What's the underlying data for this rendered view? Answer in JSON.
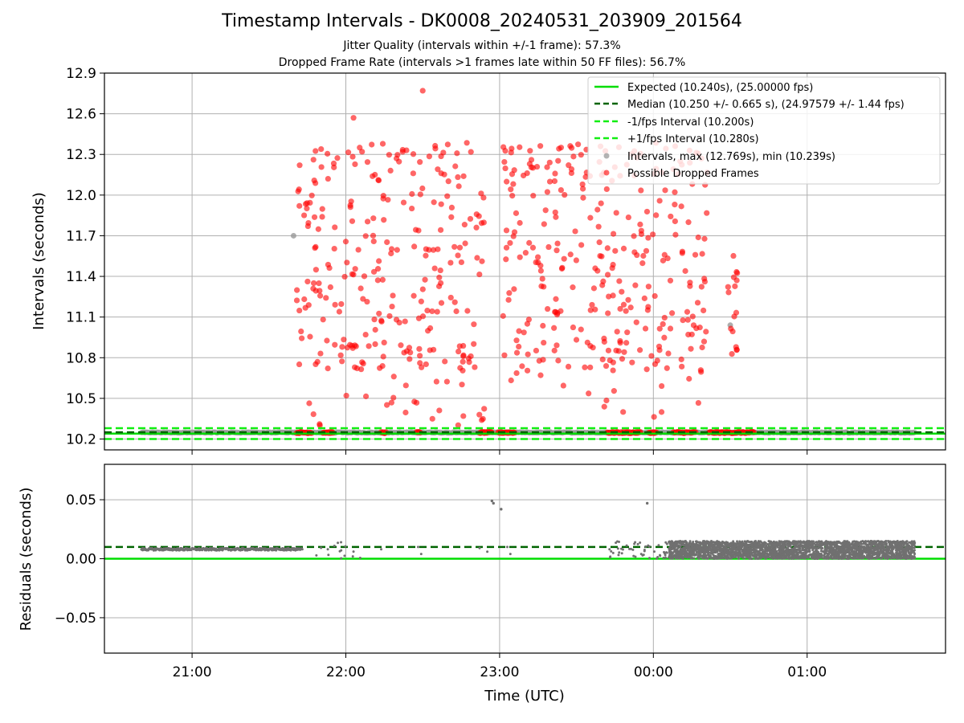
{
  "chart_data": [
    {
      "type": "scatter",
      "title": "Timestamp Intervals - DK0008_20240531_203909_201564",
      "subtitle_lines": [
        "Jitter Quality (intervals within +/-1 frame): 57.3%",
        "Dropped Frame Rate (intervals >1 frames late within 50 FF files): 56.7%"
      ],
      "ylabel": "Intervals (seconds)",
      "ylim": [
        10.12,
        12.9
      ],
      "xlim_hours": [
        20.43,
        25.9
      ],
      "yticks": [
        "10.2",
        "10.5",
        "10.8",
        "11.1",
        "11.4",
        "11.7",
        "12.0",
        "12.3",
        "12.6",
        "12.9"
      ],
      "ytick_values": [
        10.2,
        10.5,
        10.8,
        11.1,
        11.4,
        11.7,
        12.0,
        12.3,
        12.6,
        12.9
      ],
      "grid": true,
      "legend_position": "top-right",
      "reference_lines": [
        {
          "label": "Expected (10.240s), (25.00000 fps)",
          "y": 10.24,
          "color": "#00dd00",
          "style": "solid"
        },
        {
          "label": "Median (10.250 +/- 0.665 s), (24.97579 +/- 1.44 fps)",
          "y": 10.25,
          "color": "#006400",
          "style": "dashed"
        },
        {
          "label": "-1/fps Interval (10.200s)",
          "y": 10.2,
          "color": "#11ee11",
          "style": "dashed"
        },
        {
          "label": "+1/fps Interval (10.280s)",
          "y": 10.28,
          "color": "#11ee11",
          "style": "dashed"
        }
      ],
      "series": [
        {
          "name": "Intervals, max (12.769s), min (10.239s)",
          "color": "#999999",
          "baseline_value": 10.248,
          "baseline_range_hours": [
            20.67,
            25.7
          ],
          "outliers": [
            {
              "x": 21.66,
              "y": 11.7
            },
            {
              "x": 24.5,
              "y": 11.04
            }
          ]
        },
        {
          "name": "Possible Dropped Frames",
          "color": "#ff0000",
          "dense_x_ranges": [
            [
              21.68,
              21.78
            ],
            [
              21.85,
              21.92
            ],
            [
              22.23,
              22.26
            ],
            [
              22.46,
              22.49
            ],
            [
              22.87,
              22.95
            ],
            [
              22.99,
              23.1
            ],
            [
              23.7,
              23.78
            ],
            [
              23.79,
              23.92
            ],
            [
              23.97,
              24.02
            ],
            [
              24.13,
              24.28
            ],
            [
              24.36,
              24.66
            ]
          ],
          "dense_y": 10.248,
          "scatter_x_ranges": [
            [
              21.68,
              22.12
            ],
            [
              22.12,
              22.9
            ],
            [
              23.02,
              23.7
            ],
            [
              23.7,
              24.35
            ],
            [
              24.48,
              24.55
            ]
          ],
          "scatter_y_range": [
            10.25,
            12.45
          ],
          "highlight_points": [
            {
              "x": 22.5,
              "y": 12.77
            },
            {
              "x": 22.05,
              "y": 12.57
            }
          ]
        }
      ]
    },
    {
      "type": "scatter",
      "xlabel": "Time (UTC)",
      "ylabel": "Residuals (seconds)",
      "ylim": [
        -0.08,
        0.08
      ],
      "yticks": [
        "0.05",
        "0.00",
        "−0.05"
      ],
      "ytick_values": [
        0.05,
        0.0,
        -0.05
      ],
      "xticks": [
        "21:00",
        "22:00",
        "23:00",
        "00:00",
        "01:00"
      ],
      "xtick_hours": [
        21,
        22,
        23,
        24,
        25
      ],
      "grid": true,
      "reference_lines": [
        {
          "y": 0.0,
          "color": "#00dd00",
          "style": "solid"
        },
        {
          "y": 0.01,
          "color": "#006400",
          "style": "dashed"
        }
      ],
      "series": [
        {
          "color": "#707070",
          "baseline_value": 0.008,
          "baseline_range_hours": [
            20.67,
            21.72
          ],
          "scattered_ranges_hours": [
            [
              21.72,
              22.1
            ],
            [
              23.7,
              24.1
            ],
            [
              24.1,
              25.7
            ]
          ],
          "scattered_y_range": [
            0.0,
            0.015
          ],
          "outliers": [
            {
              "x": 22.95,
              "y": 0.049
            },
            {
              "x": 22.96,
              "y": 0.047
            },
            {
              "x": 23.01,
              "y": 0.042
            },
            {
              "x": 23.96,
              "y": 0.047
            }
          ]
        }
      ]
    }
  ]
}
